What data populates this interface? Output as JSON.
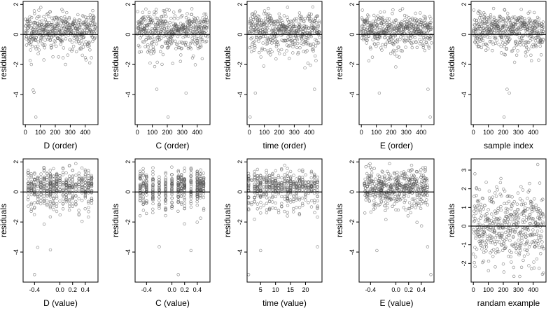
{
  "figure": {
    "ylabel": "residuals",
    "note": "residual scatter panels; point clouds estimated (approx. 470 residuals per panel, sorted-order positions not recoverable exactly)"
  },
  "chart_data": [
    {
      "type": "scatter",
      "xlabel": "D (order)",
      "ylabel": "residuals",
      "xlim": [
        -15,
        485
      ],
      "ylim": [
        -6,
        2.2
      ],
      "xticks": [
        0,
        100,
        200,
        300,
        400
      ],
      "xtick_labels": [
        "0",
        "100",
        "200",
        "300",
        "400"
      ],
      "yticks": [
        -4,
        -2,
        0,
        2
      ],
      "ytick_labels": [
        "-4",
        "-2",
        "0",
        "2"
      ],
      "hline": 0,
      "series": [
        {
          "x_dist": {
            "kind": "index",
            "n": 470
          },
          "y_dist": {
            "kind": "residuals",
            "seed": 11
          },
          "outliers": [
            [
              52,
              -3.7
            ],
            [
              58,
              -3.85
            ],
            [
              70,
              -5.5
            ],
            [
              40,
              -2.0
            ]
          ]
        }
      ]
    },
    {
      "type": "scatter",
      "xlabel": "C (order)",
      "ylabel": "residuals",
      "xlim": [
        -15,
        485
      ],
      "ylim": [
        -6,
        2.2
      ],
      "xticks": [
        0,
        100,
        200,
        300,
        400
      ],
      "xtick_labels": [
        "0",
        "100",
        "200",
        "300",
        "400"
      ],
      "yticks": [
        -4,
        -2,
        0,
        2
      ],
      "ytick_labels": [
        "-4",
        "-2",
        "0",
        "2"
      ],
      "hline": 0,
      "series": [
        {
          "x_dist": {
            "kind": "index",
            "n": 470
          },
          "y_dist": {
            "kind": "residuals",
            "seed": 22
          },
          "outliers": [
            [
              130,
              -3.65
            ],
            [
              325,
              -3.9
            ],
            [
              205,
              -5.5
            ]
          ]
        }
      ]
    },
    {
      "type": "scatter",
      "xlabel": "time (order)",
      "ylabel": "residuals",
      "xlim": [
        -15,
        485
      ],
      "ylim": [
        -6,
        2.2
      ],
      "xticks": [
        0,
        100,
        200,
        300,
        400
      ],
      "xtick_labels": [
        "0",
        "100",
        "200",
        "300",
        "400"
      ],
      "yticks": [
        -4,
        -2,
        0,
        2
      ],
      "ytick_labels": [
        "-4",
        "-2",
        "0",
        "2"
      ],
      "hline": 0,
      "series": [
        {
          "x_dist": {
            "kind": "index",
            "n": 470
          },
          "y_dist": {
            "kind": "residuals",
            "seed": 33
          },
          "outliers": [
            [
              40,
              -3.9
            ],
            [
              435,
              -3.65
            ],
            [
              5,
              -5.5
            ]
          ]
        }
      ]
    },
    {
      "type": "scatter",
      "xlabel": "E (order)",
      "ylabel": "residuals",
      "xlim": [
        -15,
        485
      ],
      "ylim": [
        -6,
        2.2
      ],
      "xticks": [
        0,
        100,
        200,
        300,
        400
      ],
      "xtick_labels": [
        "0",
        "100",
        "200",
        "300",
        "400"
      ],
      "yticks": [
        -4,
        -2,
        0,
        2
      ],
      "ytick_labels": [
        "-4",
        "-2",
        "0",
        "2"
      ],
      "hline": 0,
      "series": [
        {
          "x_dist": {
            "kind": "index",
            "n": 470
          },
          "y_dist": {
            "kind": "residuals",
            "seed": 44
          },
          "outliers": [
            [
              120,
              -3.9
            ],
            [
              445,
              -3.65
            ],
            [
              460,
              -5.5
            ]
          ]
        }
      ]
    },
    {
      "type": "scatter",
      "xlabel": "sample index",
      "ylabel": "residuals",
      "xlim": [
        -15,
        485
      ],
      "ylim": [
        -6,
        2.2
      ],
      "xticks": [
        0,
        100,
        200,
        300,
        400
      ],
      "xtick_labels": [
        "0",
        "100",
        "200",
        "300",
        "400"
      ],
      "yticks": [
        -4,
        -2,
        0,
        2
      ],
      "ytick_labels": [
        "-4",
        "-2",
        "0",
        "2"
      ],
      "hline": 0,
      "series": [
        {
          "x_dist": {
            "kind": "index",
            "n": 470
          },
          "y_dist": {
            "kind": "residuals",
            "seed": 55
          },
          "outliers": [
            [
              225,
              -3.65
            ],
            [
              240,
              -3.9
            ],
            [
              205,
              -5.5
            ]
          ]
        }
      ]
    },
    {
      "type": "scatter",
      "xlabel": "D (value)",
      "ylabel": "residuals",
      "xlim": [
        -0.58,
        0.6
      ],
      "ylim": [
        -6,
        2.2
      ],
      "xticks": [
        -0.4,
        0.0,
        0.2,
        0.4
      ],
      "xtick_labels": [
        "-0.4",
        "0.0",
        "0.2",
        "0.4"
      ],
      "yticks": [
        -4,
        -2,
        0,
        2
      ],
      "ytick_labels": [
        "-4",
        "-2",
        "0",
        "2"
      ],
      "hline": 0,
      "series": [
        {
          "x_dist": {
            "kind": "levels",
            "values": [
              -0.5,
              -0.45,
              -0.4,
              -0.35,
              -0.3,
              -0.25,
              -0.2,
              -0.15,
              -0.1,
              -0.05,
              0.0,
              0.05,
              0.1,
              0.15,
              0.2,
              0.25,
              0.3,
              0.35,
              0.4,
              0.45,
              0.5
            ],
            "n": 470
          },
          "y_dist": {
            "kind": "residuals",
            "seed": 66
          },
          "outliers": [
            [
              -0.35,
              -3.7
            ],
            [
              -0.15,
              -3.85
            ],
            [
              -0.4,
              -5.5
            ]
          ]
        }
      ]
    },
    {
      "type": "scatter",
      "xlabel": "C (value)",
      "ylabel": "residuals",
      "xlim": [
        -0.58,
        0.6
      ],
      "ylim": [
        -6,
        2.2
      ],
      "xticks": [
        -0.4,
        0.0,
        0.2,
        0.4
      ],
      "xtick_labels": [
        "-0.4",
        "0.0",
        "0.2",
        "0.4"
      ],
      "yticks": [
        -4,
        -2,
        0,
        2
      ],
      "ytick_labels": [
        "-4",
        "-2",
        "0",
        "2"
      ],
      "hline": 0,
      "series": [
        {
          "x_dist": {
            "kind": "levels",
            "values": [
              -0.5,
              -0.45,
              -0.4,
              -0.3,
              -0.2,
              -0.1,
              0.0,
              0.1,
              0.15,
              0.2,
              0.3,
              0.4,
              0.45,
              0.5
            ],
            "n": 470
          },
          "y_dist": {
            "kind": "residuals",
            "seed": 77
          },
          "outliers": [
            [
              -0.2,
              -3.65
            ],
            [
              0.3,
              -3.9
            ],
            [
              0.1,
              -5.5
            ]
          ]
        }
      ]
    },
    {
      "type": "scatter",
      "xlabel": "time (value)",
      "ylabel": "residuals",
      "xlim": [
        0.5,
        25.5
      ],
      "ylim": [
        -6,
        2.2
      ],
      "xticks": [
        5,
        10,
        15,
        20
      ],
      "xtick_labels": [
        "5",
        "10",
        "15",
        "20"
      ],
      "yticks": [
        -4,
        -2,
        0,
        2
      ],
      "ytick_labels": [
        "-4",
        "-2",
        "0",
        "2"
      ],
      "hline": 0,
      "series": [
        {
          "x_dist": {
            "kind": "levels",
            "values": [
              1,
              2,
              3,
              4,
              5,
              6,
              7,
              8,
              9,
              10,
              11,
              12,
              13,
              14,
              15,
              16,
              17,
              18,
              19,
              20,
              21,
              22,
              23,
              24
            ],
            "n": 470
          },
          "y_dist": {
            "kind": "residuals",
            "seed": 88
          },
          "outliers": [
            [
              5,
              -3.9
            ],
            [
              24,
              -3.65
            ],
            [
              1,
              -5.5
            ]
          ]
        }
      ]
    },
    {
      "type": "scatter",
      "xlabel": "E (value)",
      "ylabel": "residuals",
      "xlim": [
        -0.58,
        0.6
      ],
      "ylim": [
        -6,
        2.2
      ],
      "xticks": [
        -0.4,
        0.0,
        0.2,
        0.4
      ],
      "xtick_labels": [
        "-0.4",
        "0.0",
        "0.2",
        "0.4"
      ],
      "yticks": [
        -4,
        -2,
        0,
        2
      ],
      "ytick_labels": [
        "-4",
        "-2",
        "0",
        "2"
      ],
      "hline": 0,
      "series": [
        {
          "x_dist": {
            "kind": "uniform",
            "n": 470
          },
          "y_dist": {
            "kind": "residuals",
            "seed": 99
          },
          "outliers": [
            [
              -0.3,
              -3.9
            ],
            [
              0.5,
              -3.65
            ],
            [
              0.55,
              -5.5
            ]
          ]
        }
      ]
    },
    {
      "type": "scatter",
      "xlabel": "randam example",
      "ylabel": "residuals",
      "xlim": [
        -15,
        485
      ],
      "ylim": [
        -3.0,
        3.6
      ],
      "xticks": [
        0,
        100,
        200,
        300,
        400
      ],
      "xtick_labels": [
        "0",
        "100",
        "200",
        "300",
        "400"
      ],
      "yticks": [
        -2,
        -1,
        0,
        1,
        2,
        3
      ],
      "ytick_labels": [
        "-2",
        "-1",
        "0",
        "1",
        "2",
        "3"
      ],
      "hline": 0,
      "series": [
        {
          "x_dist": {
            "kind": "index",
            "n": 470
          },
          "y_dist": {
            "kind": "normal",
            "seed": 101
          },
          "outliers": [
            [
              10,
              2.8
            ],
            [
              430,
              3.3
            ]
          ]
        }
      ]
    }
  ]
}
